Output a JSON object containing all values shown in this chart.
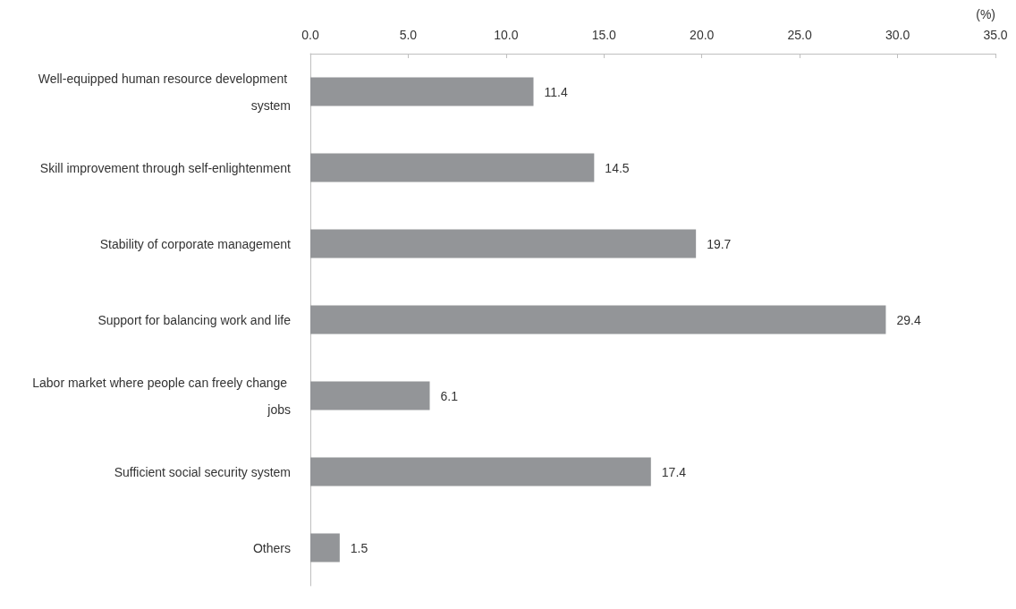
{
  "chart_data": {
    "type": "bar",
    "orientation": "horizontal",
    "xlabel": "(%)",
    "categories": [
      "Well-equipped human resource development system",
      "Skill improvement through self-enlightenment",
      "Stability of corporate management",
      "Support for balancing work and life",
      "Labor market where people can freely change jobs",
      "Sufficient social security system",
      "Others"
    ],
    "values": [
      11.4,
      14.5,
      19.7,
      29.4,
      6.1,
      17.4,
      1.5
    ],
    "color": "#939598",
    "xlim": [
      0,
      35
    ],
    "xticks": [
      {
        "value": 0,
        "label": "0.0"
      },
      {
        "value": 5,
        "label": "5.0"
      },
      {
        "value": 10,
        "label": "10.0"
      },
      {
        "value": 15,
        "label": "15.0"
      },
      {
        "value": 20,
        "label": "20.0"
      },
      {
        "value": 25,
        "label": "25.0"
      },
      {
        "value": 30,
        "label": "30.0"
      },
      {
        "value": 35,
        "label": "35.0"
      }
    ],
    "data_labels": true
  }
}
